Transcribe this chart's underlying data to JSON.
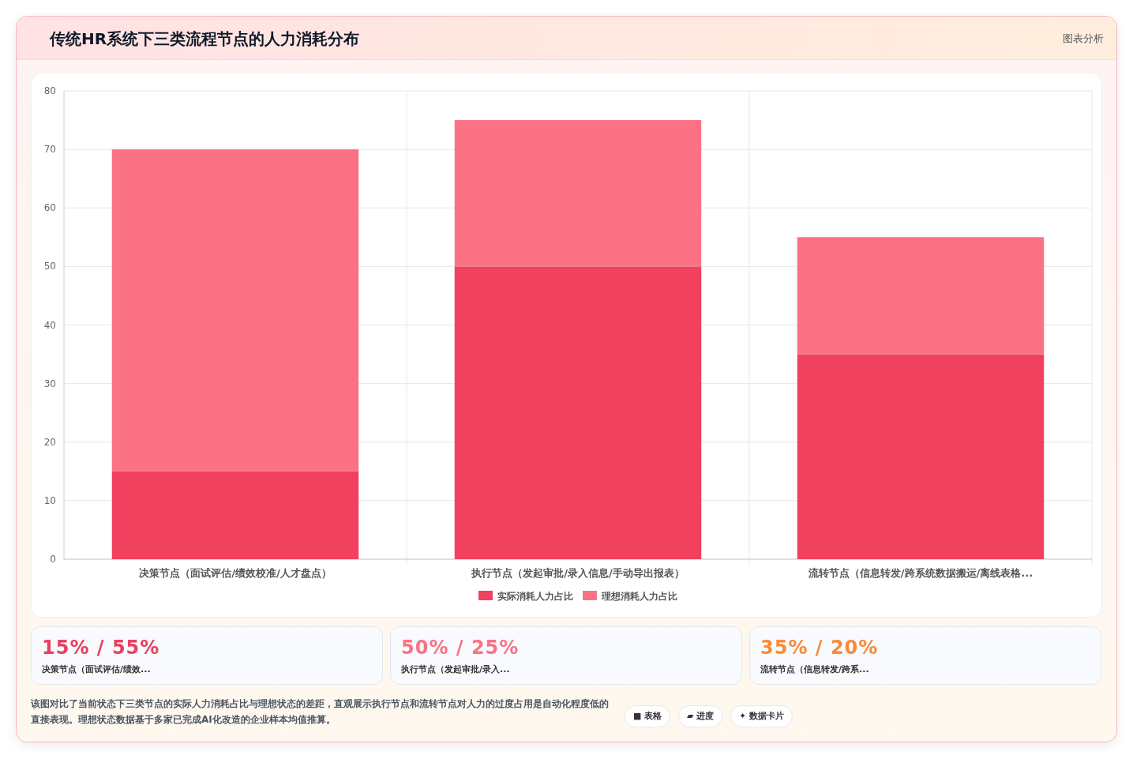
{
  "chart_data": {
    "type": "bar",
    "title": "传统HR系统下三类流程节点的人力消耗分布",
    "subtitle": "图表分析",
    "categories": [
      "决策节点（面试评估/绩效校准/人才盘点）",
      "执行节点（发起审批/录入信息/手动导出报表）",
      "流转节点（信息转发/跨系统数据搬运/离线表格..."
    ],
    "series": [
      {
        "name": "实际消耗人力占比",
        "color": "#f2405f",
        "values": [
          15,
          50,
          35
        ]
      },
      {
        "name": "理想消耗人力占比",
        "color": "#fb7285",
        "values": [
          55,
          25,
          20
        ]
      }
    ],
    "stacked": true,
    "ylim": [
      0,
      80
    ],
    "yticks": [
      0,
      10,
      20,
      30,
      40,
      50,
      60,
      70,
      80
    ],
    "grid": true,
    "legend": "bottom",
    "annotations": [
      "15% / 55%",
      "决策节点（面试评估/绩效...",
      "50% / 25%",
      "执行节点（发起审批/录入...",
      "35% / 20%",
      "流转节点（信息转发/跨系...",
      "该图对比了当前状态下三类节点的实际人力消耗占比与理想状态的差距，直观展示执行节点和流转节点对人力的过度占用是自动化程度低的直接表现。理想状态数据基于多家已完成AI化改造的企业样本均值推算。",
      "■ 表格",
      "▰ 进度",
      "✦ 数据卡片"
    ]
  }
}
